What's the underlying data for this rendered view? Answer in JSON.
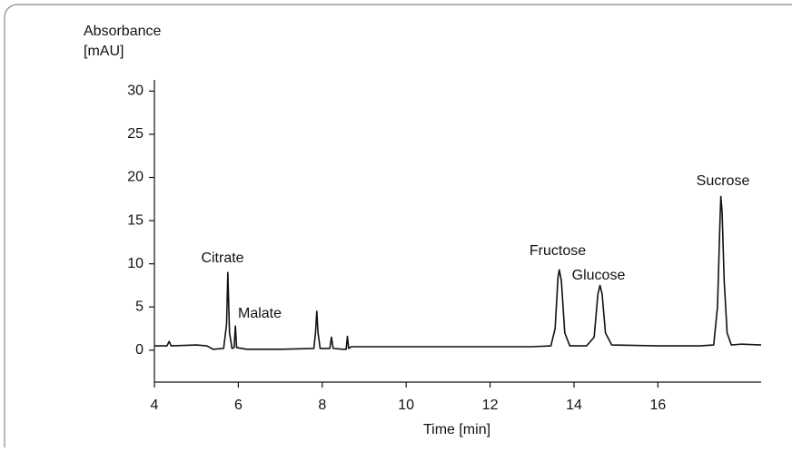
{
  "chart_data": {
    "type": "line",
    "ylabel": "Absorbance",
    "yunit": "[mAU]",
    "xlabel": "Time [min]",
    "annotations": [
      "Citrate",
      "Malate",
      "Fructose",
      "Glucose",
      "Sucrose"
    ],
    "xlim": [
      4,
      18.46
    ],
    "xticks": [
      4,
      6,
      8,
      10,
      12,
      14,
      16
    ],
    "ylim": [
      -3.7,
      31.3
    ],
    "yticks": [
      0,
      5,
      10,
      15,
      20,
      25,
      30
    ],
    "series": [
      {
        "name": "trace",
        "color": "#111111",
        "x": [
          4.0,
          4.3,
          4.35,
          4.4,
          5.0,
          5.25,
          5.4,
          5.65,
          5.72,
          5.75,
          5.79,
          5.85,
          5.9,
          5.93,
          5.96,
          6.2,
          7.0,
          7.8,
          7.84,
          7.87,
          7.9,
          7.95,
          8.18,
          8.22,
          8.26,
          8.5,
          8.57,
          8.6,
          8.63,
          8.7,
          9,
          10,
          11,
          12,
          13,
          13.45,
          13.55,
          13.62,
          13.65,
          13.7,
          13.78,
          13.9,
          14.3,
          14.48,
          14.57,
          14.62,
          14.67,
          14.75,
          14.9,
          16,
          17,
          17.33,
          17.42,
          17.48,
          17.5,
          17.53,
          17.58,
          17.65,
          17.75,
          18,
          18.46
        ],
        "values": [
          0.5,
          0.5,
          1.0,
          0.5,
          0.6,
          0.5,
          0.1,
          0.2,
          3,
          9.0,
          2,
          0.2,
          0.3,
          2.8,
          0.3,
          0.1,
          0.1,
          0.2,
          2,
          4.5,
          2,
          0.2,
          0.2,
          1.5,
          0.2,
          0.1,
          0.1,
          1.6,
          0.2,
          0.4,
          0.4,
          0.4,
          0.4,
          0.4,
          0.4,
          0.5,
          2.5,
          8.5,
          9.3,
          8,
          2,
          0.5,
          0.5,
          1.5,
          6.5,
          7.5,
          6.5,
          2,
          0.6,
          0.5,
          0.5,
          0.6,
          5,
          15,
          17.8,
          16,
          8,
          2,
          0.6,
          0.7,
          0.6
        ]
      }
    ]
  }
}
